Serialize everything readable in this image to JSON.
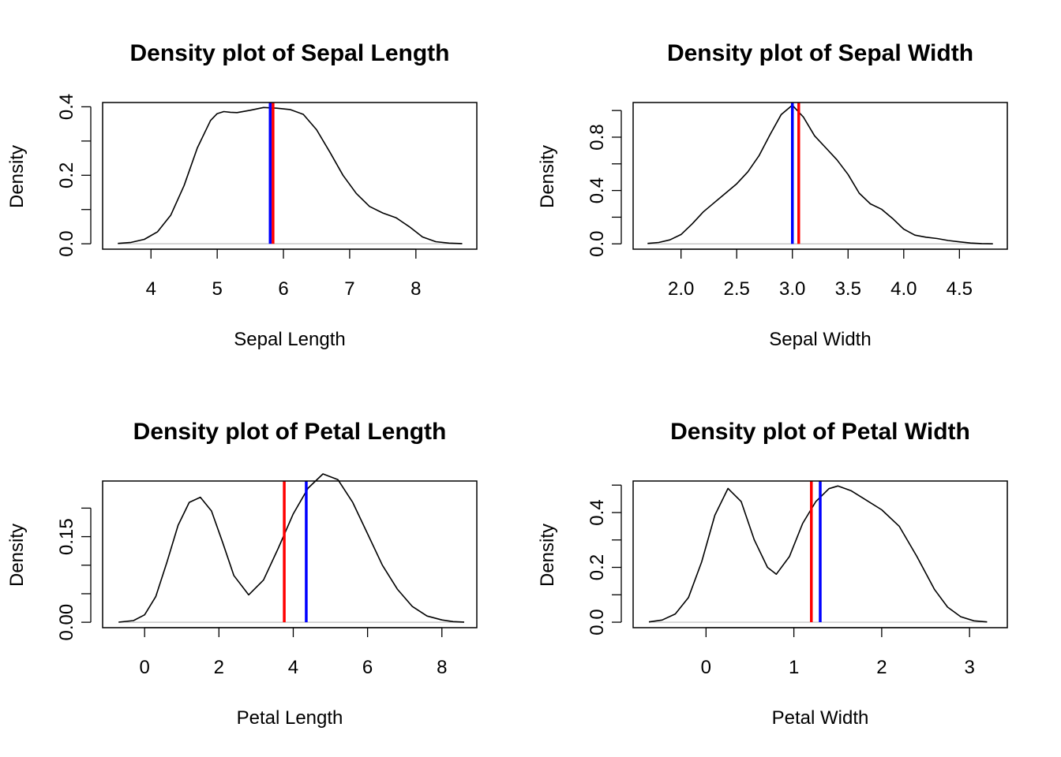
{
  "colors": {
    "density_line": "#000000",
    "baseline": "#bebebe",
    "mean_line": "#ff0000",
    "median_line": "#0000ff"
  },
  "chart_data": [
    {
      "type": "line",
      "title": "Density plot of Sepal Length",
      "xlabel": "Sepal Length",
      "ylabel": "Density",
      "xlim": [
        3.27,
        8.92
      ],
      "ylim": [
        -0.0158,
        0.4125
      ],
      "xticks": [
        4,
        5,
        6,
        7,
        8
      ],
      "xtick_labels": [
        "4",
        "5",
        "6",
        "7",
        "8"
      ],
      "yticks": [
        0.0,
        0.1,
        0.2,
        0.3,
        0.4
      ],
      "ytick_labels": [
        "0.0",
        "",
        "0.2",
        "",
        "0.4"
      ],
      "x": [
        3.5,
        3.7,
        3.9,
        4.1,
        4.3,
        4.5,
        4.7,
        4.9,
        5.0,
        5.1,
        5.2,
        5.3,
        5.5,
        5.7,
        5.9,
        6.1,
        6.3,
        6.5,
        6.7,
        6.9,
        7.1,
        7.3,
        7.5,
        7.7,
        7.9,
        8.1,
        8.3,
        8.5,
        8.7
      ],
      "y": [
        0.001,
        0.004,
        0.013,
        0.035,
        0.084,
        0.17,
        0.28,
        0.36,
        0.38,
        0.386,
        0.384,
        0.383,
        0.39,
        0.398,
        0.396,
        0.392,
        0.378,
        0.333,
        0.268,
        0.2,
        0.147,
        0.109,
        0.09,
        0.076,
        0.05,
        0.02,
        0.006,
        0.002,
        0.0005
      ],
      "mean": 5.843,
      "median": 5.8
    },
    {
      "type": "line",
      "title": "Density plot of Sepal Width",
      "xlabel": "Sepal Width",
      "ylabel": "Density",
      "xlim": [
        1.57,
        4.93
      ],
      "ylim": [
        -0.04,
        1.06
      ],
      "xticks": [
        2.0,
        2.5,
        3.0,
        3.5,
        4.0,
        4.5
      ],
      "xtick_labels": [
        "2.0",
        "2.5",
        "3.0",
        "3.5",
        "4.0",
        "4.5"
      ],
      "yticks": [
        0.0,
        0.2,
        0.4,
        0.6,
        0.8,
        1.0
      ],
      "ytick_labels": [
        "0.0",
        "",
        "0.4",
        "",
        "0.8",
        ""
      ],
      "x": [
        1.7,
        1.8,
        1.9,
        2.0,
        2.1,
        2.2,
        2.3,
        2.4,
        2.5,
        2.6,
        2.7,
        2.8,
        2.9,
        3.0,
        3.1,
        3.2,
        3.3,
        3.4,
        3.5,
        3.6,
        3.7,
        3.8,
        3.9,
        4.0,
        4.1,
        4.2,
        4.3,
        4.4,
        4.5,
        4.6,
        4.7,
        4.8
      ],
      "y": [
        0.003,
        0.01,
        0.03,
        0.07,
        0.15,
        0.24,
        0.31,
        0.38,
        0.45,
        0.54,
        0.66,
        0.82,
        0.97,
        1.04,
        0.95,
        0.81,
        0.72,
        0.63,
        0.52,
        0.38,
        0.3,
        0.26,
        0.19,
        0.11,
        0.065,
        0.05,
        0.04,
        0.025,
        0.015,
        0.006,
        0.002,
        0.0005
      ],
      "mean": 3.057,
      "median": 3.0
    },
    {
      "type": "line",
      "title": "Density plot of Petal Length",
      "xlabel": "Petal Length",
      "ylabel": "Density",
      "xlim": [
        -1.13,
        8.94
      ],
      "ylim": [
        -0.0095,
        0.2475
      ],
      "xticks": [
        0,
        2,
        4,
        6,
        8
      ],
      "xtick_labels": [
        "0",
        "2",
        "4",
        "6",
        "8"
      ],
      "yticks": [
        0.0,
        0.05,
        0.1,
        0.15,
        0.2
      ],
      "ytick_labels": [
        "0.00",
        "",
        "",
        "0.15",
        ""
      ],
      "x": [
        -0.7,
        -0.3,
        0.0,
        0.3,
        0.6,
        0.9,
        1.2,
        1.5,
        1.8,
        2.1,
        2.4,
        2.8,
        3.2,
        3.6,
        4.0,
        4.4,
        4.8,
        5.2,
        5.6,
        6.0,
        6.4,
        6.8,
        7.2,
        7.6,
        8.0,
        8.3,
        8.6
      ],
      "y": [
        0.0002,
        0.003,
        0.013,
        0.045,
        0.105,
        0.17,
        0.21,
        0.219,
        0.195,
        0.14,
        0.082,
        0.048,
        0.074,
        0.13,
        0.19,
        0.235,
        0.26,
        0.25,
        0.21,
        0.155,
        0.1,
        0.058,
        0.028,
        0.011,
        0.004,
        0.0012,
        0.0003
      ],
      "mean": 3.758,
      "median": 4.35
    },
    {
      "type": "line",
      "title": "Density plot of Petal Width",
      "xlabel": "Petal Width",
      "ylabel": "Density",
      "xlim": [
        -0.83,
        3.43
      ],
      "ylim": [
        -0.02,
        0.515
      ],
      "xticks": [
        0,
        1,
        2,
        3
      ],
      "xtick_labels": [
        "0",
        "1",
        "2",
        "3"
      ],
      "yticks": [
        0.0,
        0.1,
        0.2,
        0.3,
        0.4,
        0.5
      ],
      "ytick_labels": [
        "0.0",
        "",
        "0.2",
        "",
        "0.4",
        ""
      ],
      "x": [
        -0.65,
        -0.5,
        -0.35,
        -0.2,
        -0.05,
        0.1,
        0.25,
        0.4,
        0.55,
        0.7,
        0.8,
        0.95,
        1.1,
        1.25,
        1.4,
        1.5,
        1.65,
        1.8,
        2.0,
        2.2,
        2.4,
        2.6,
        2.75,
        2.9,
        3.05,
        3.2
      ],
      "y": [
        0.001,
        0.008,
        0.03,
        0.09,
        0.22,
        0.39,
        0.488,
        0.44,
        0.3,
        0.2,
        0.175,
        0.24,
        0.36,
        0.44,
        0.487,
        0.497,
        0.48,
        0.45,
        0.41,
        0.35,
        0.24,
        0.12,
        0.055,
        0.02,
        0.005,
        0.001
      ],
      "mean": 1.199,
      "median": 1.3
    }
  ]
}
